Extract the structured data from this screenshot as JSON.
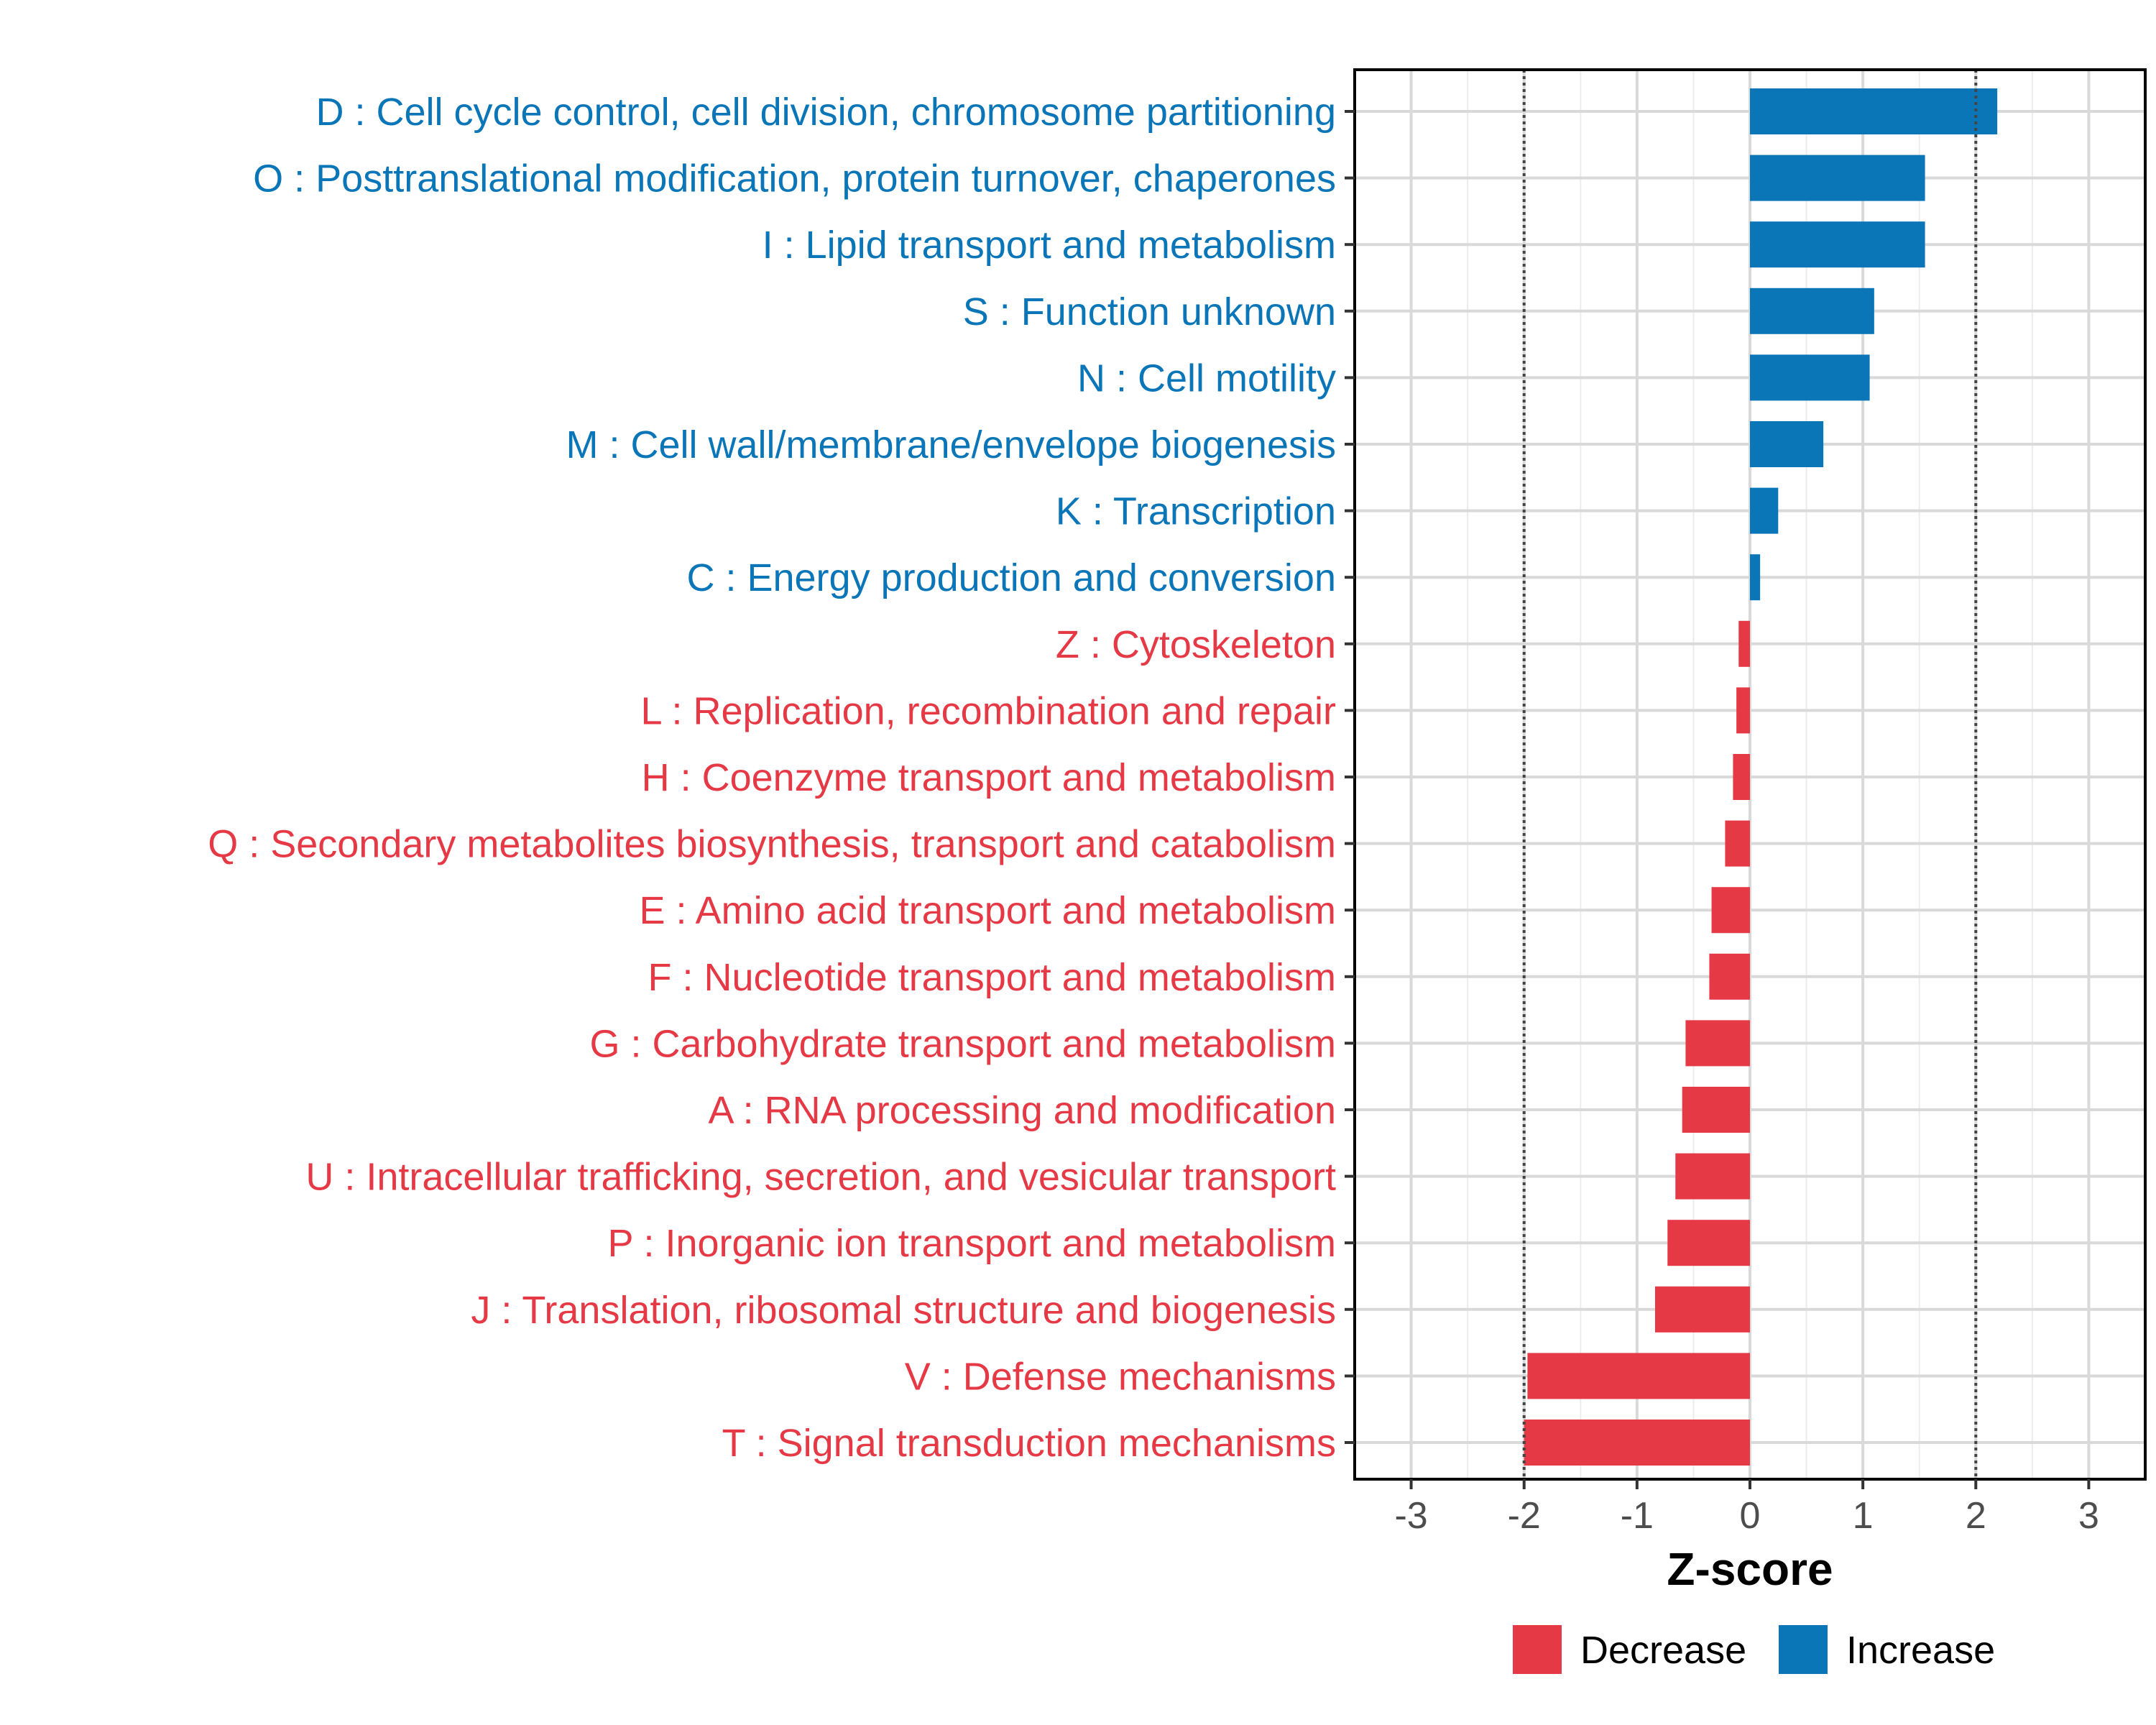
{
  "chart_data": {
    "type": "bar",
    "orientation": "horizontal",
    "xlabel": "Z-score",
    "xlim": [
      -3.5,
      3.5
    ],
    "xticks": [
      -3,
      -2,
      -1,
      0,
      1,
      2,
      3
    ],
    "xtick_labels": [
      "-3",
      "-2",
      "-1",
      "0",
      "1",
      "2",
      "3"
    ],
    "reference_lines": [
      -2,
      2
    ],
    "grid": true,
    "colors": {
      "Increase": "#0a76b8",
      "Decrease": "#e63946"
    },
    "categories": [
      "D : Cell cycle control, cell division, chromosome partitioning",
      "O : Posttranslational modification, protein turnover, chaperones",
      "I : Lipid transport and metabolism",
      "S : Function unknown",
      "N : Cell motility",
      "M : Cell wall/membrane/envelope biogenesis",
      "K : Transcription",
      "C : Energy production and conversion",
      "Z : Cytoskeleton",
      "L : Replication, recombination and repair",
      "H : Coenzyme transport and metabolism",
      "Q : Secondary metabolites biosynthesis, transport and catabolism",
      "E : Amino acid transport and metabolism",
      "F : Nucleotide transport and metabolism",
      "G : Carbohydrate transport and metabolism",
      "A : RNA processing and modification",
      "U : Intracellular trafficking, secretion, and vesicular transport",
      "P : Inorganic ion transport and metabolism",
      "J : Translation, ribosomal structure and biogenesis",
      "V : Defense mechanisms",
      "T : Signal transduction mechanisms"
    ],
    "values": [
      2.19,
      1.55,
      1.55,
      1.1,
      1.06,
      0.65,
      0.25,
      0.09,
      -0.1,
      -0.12,
      -0.15,
      -0.22,
      -0.34,
      -0.36,
      -0.57,
      -0.6,
      -0.66,
      -0.73,
      -0.84,
      -1.97,
      -2.0
    ],
    "groups": [
      "Increase",
      "Increase",
      "Increase",
      "Increase",
      "Increase",
      "Increase",
      "Increase",
      "Increase",
      "Decrease",
      "Decrease",
      "Decrease",
      "Decrease",
      "Decrease",
      "Decrease",
      "Decrease",
      "Decrease",
      "Decrease",
      "Decrease",
      "Decrease",
      "Decrease",
      "Decrease"
    ],
    "legend": {
      "placement": "bottom",
      "entries": [
        {
          "label": "Decrease",
          "color": "#e63946"
        },
        {
          "label": "Increase",
          "color": "#0a76b8"
        }
      ]
    }
  }
}
